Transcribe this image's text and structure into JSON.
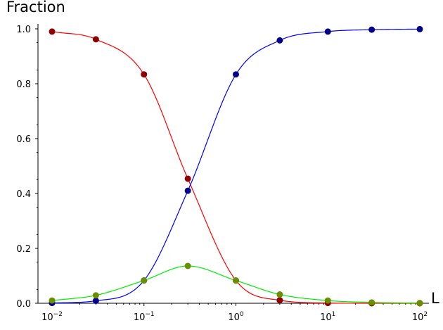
{
  "chart_data": {
    "type": "line",
    "title": "",
    "xlabel": "L",
    "ylabel": "Fraction",
    "xscale": "log",
    "xlim": [
      0.01,
      100
    ],
    "ylim": [
      0,
      1.0
    ],
    "grid": false,
    "legend": "none",
    "x_tick_values": [
      0.01,
      0.1,
      1,
      10,
      100
    ],
    "x_tick_labels": [
      {
        "base": "10",
        "exp": "−2"
      },
      {
        "base": "10",
        "exp": "−1"
      },
      {
        "base": "10",
        "exp": "0"
      },
      {
        "base": "10",
        "exp": "1"
      },
      {
        "base": "10",
        "exp": "2"
      }
    ],
    "y_tick_values": [
      0,
      0.2,
      0.4,
      0.6,
      0.8,
      1.0
    ],
    "y_tick_labels": [
      "0.0",
      "0.2",
      "0.4",
      "0.6",
      "0.8",
      "1.0"
    ],
    "x": [
      0.01,
      0.03,
      0.1,
      0.3,
      1,
      3,
      10,
      30,
      100
    ],
    "series": [
      {
        "color": "#ff0000",
        "marker_color": "#8b0000",
        "values": [
          0.99,
          0.962,
          0.834,
          0.454,
          0.083,
          0.011,
          0.001,
          0.0,
          0.0
        ]
      },
      {
        "color": "#0000ff",
        "marker_color": "#00008b",
        "values": [
          0.001,
          0.009,
          0.083,
          0.41,
          0.834,
          0.958,
          0.99,
          0.997,
          0.999
        ]
      },
      {
        "color": "#00ee00",
        "marker_color": "#6b8e00",
        "values": [
          0.01,
          0.029,
          0.083,
          0.136,
          0.083,
          0.032,
          0.01,
          0.003,
          0.001
        ]
      }
    ]
  }
}
